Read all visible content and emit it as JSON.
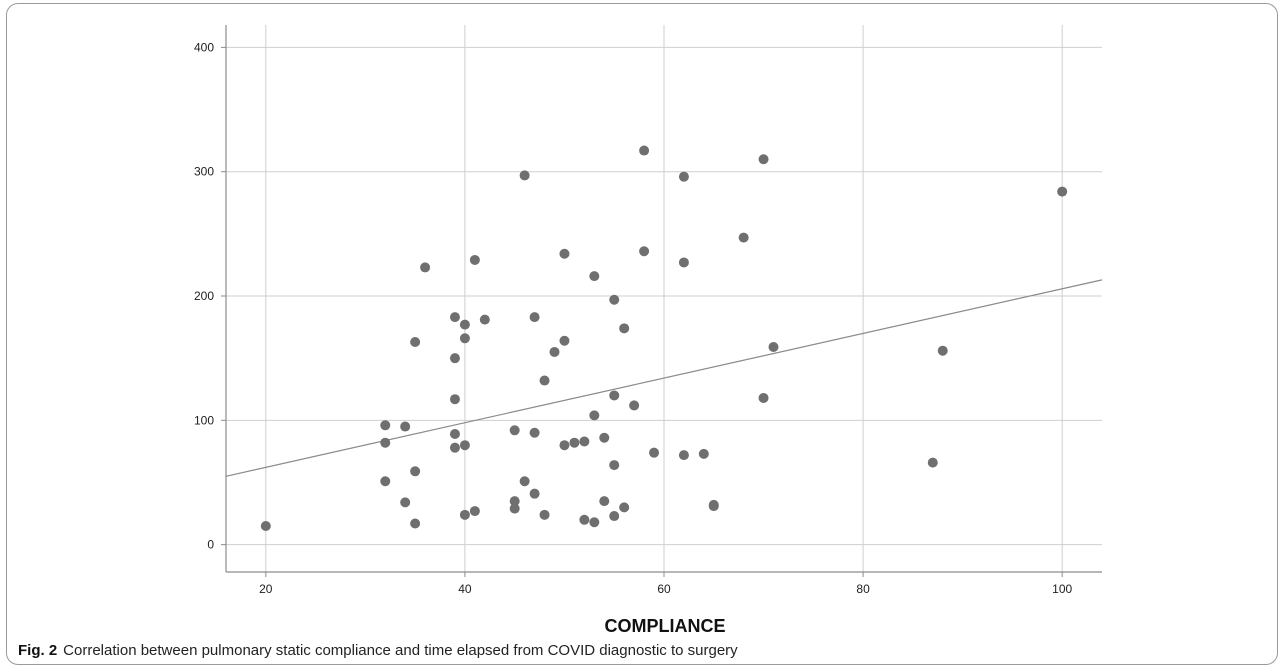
{
  "chart_data": {
    "type": "scatter",
    "xlabel": "COMPLIANCE",
    "ylabel": "",
    "xlim": [
      16,
      104
    ],
    "ylim": [
      -22,
      418
    ],
    "xticks": [
      20,
      40,
      60,
      80,
      100
    ],
    "yticks": [
      0,
      100,
      200,
      300,
      400
    ],
    "grid": true,
    "fit_line": {
      "x": [
        16,
        104
      ],
      "y": [
        55,
        213
      ]
    },
    "colors": {
      "points": "#6f6f6f",
      "grid": "#cfcfcf",
      "axis": "#8c8c8c",
      "fit": "#8a8a8a"
    },
    "points": [
      {
        "x": 20,
        "y": 15
      },
      {
        "x": 32,
        "y": 96
      },
      {
        "x": 32,
        "y": 82
      },
      {
        "x": 32,
        "y": 51
      },
      {
        "x": 34,
        "y": 95
      },
      {
        "x": 34,
        "y": 34
      },
      {
        "x": 35,
        "y": 163
      },
      {
        "x": 35,
        "y": 59
      },
      {
        "x": 35,
        "y": 17
      },
      {
        "x": 36,
        "y": 223
      },
      {
        "x": 39,
        "y": 183
      },
      {
        "x": 39,
        "y": 150
      },
      {
        "x": 39,
        "y": 117
      },
      {
        "x": 39,
        "y": 89
      },
      {
        "x": 39,
        "y": 78
      },
      {
        "x": 40,
        "y": 177
      },
      {
        "x": 40,
        "y": 166
      },
      {
        "x": 40,
        "y": 80
      },
      {
        "x": 40,
        "y": 24
      },
      {
        "x": 41,
        "y": 229
      },
      {
        "x": 41,
        "y": 27
      },
      {
        "x": 42,
        "y": 181
      },
      {
        "x": 45,
        "y": 92
      },
      {
        "x": 45,
        "y": 35
      },
      {
        "x": 45,
        "y": 29
      },
      {
        "x": 46,
        "y": 297
      },
      {
        "x": 46,
        "y": 51
      },
      {
        "x": 47,
        "y": 183
      },
      {
        "x": 47,
        "y": 90
      },
      {
        "x": 47,
        "y": 41
      },
      {
        "x": 48,
        "y": 132
      },
      {
        "x": 48,
        "y": 24
      },
      {
        "x": 49,
        "y": 155
      },
      {
        "x": 50,
        "y": 234
      },
      {
        "x": 50,
        "y": 164
      },
      {
        "x": 50,
        "y": 80
      },
      {
        "x": 51,
        "y": 82
      },
      {
        "x": 52,
        "y": 83
      },
      {
        "x": 52,
        "y": 20
      },
      {
        "x": 53,
        "y": 216
      },
      {
        "x": 53,
        "y": 104
      },
      {
        "x": 53,
        "y": 18
      },
      {
        "x": 54,
        "y": 86
      },
      {
        "x": 54,
        "y": 35
      },
      {
        "x": 55,
        "y": 197
      },
      {
        "x": 55,
        "y": 120
      },
      {
        "x": 55,
        "y": 64
      },
      {
        "x": 55,
        "y": 23
      },
      {
        "x": 56,
        "y": 174
      },
      {
        "x": 56,
        "y": 30
      },
      {
        "x": 57,
        "y": 112
      },
      {
        "x": 58,
        "y": 317
      },
      {
        "x": 58,
        "y": 236
      },
      {
        "x": 59,
        "y": 74
      },
      {
        "x": 62,
        "y": 296
      },
      {
        "x": 62,
        "y": 227
      },
      {
        "x": 62,
        "y": 72
      },
      {
        "x": 64,
        "y": 73
      },
      {
        "x": 65,
        "y": 32
      },
      {
        "x": 65,
        "y": 31
      },
      {
        "x": 68,
        "y": 247
      },
      {
        "x": 70,
        "y": 310
      },
      {
        "x": 70,
        "y": 118
      },
      {
        "x": 71,
        "y": 159
      },
      {
        "x": 87,
        "y": 66
      },
      {
        "x": 88,
        "y": 156
      },
      {
        "x": 100,
        "y": 284
      }
    ]
  },
  "caption": {
    "figure_label": "Fig. 2",
    "text": "Correlation between pulmonary static compliance and time elapsed from COVID diagnostic to surgery"
  }
}
